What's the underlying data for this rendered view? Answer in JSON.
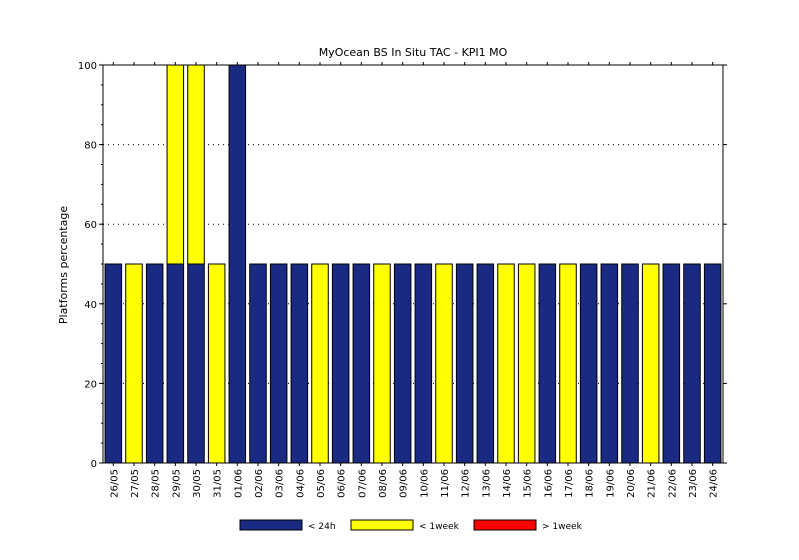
{
  "chart_data": {
    "type": "bar",
    "stacked": true,
    "title": "MyOcean  BS In Situ TAC - KPI1  MO",
    "xlabel": "",
    "ylabel": "Platforms percentage",
    "ylim": [
      0,
      100
    ],
    "yticks": [
      0,
      20,
      40,
      60,
      80,
      100
    ],
    "grid": true,
    "legend_position": "bottom",
    "categories": [
      "26/05",
      "27/05",
      "28/05",
      "29/05",
      "30/05",
      "31/05",
      "01/06",
      "02/06",
      "03/06",
      "04/06",
      "05/06",
      "06/06",
      "07/06",
      "08/06",
      "09/06",
      "10/06",
      "11/06",
      "12/06",
      "13/06",
      "14/06",
      "15/06",
      "16/06",
      "17/06",
      "18/06",
      "19/06",
      "20/06",
      "21/06",
      "22/06",
      "23/06",
      "24/06"
    ],
    "series": [
      {
        "name": "< 24h",
        "color": "#1a2a82",
        "values": [
          50,
          0,
          50,
          50,
          50,
          0,
          100,
          50,
          50,
          50,
          0,
          50,
          50,
          0,
          50,
          50,
          0,
          50,
          50,
          0,
          0,
          50,
          0,
          50,
          50,
          50,
          0,
          50,
          50,
          50
        ]
      },
      {
        "name": "< 1week",
        "color": "#ffff00",
        "values": [
          0,
          50,
          0,
          50,
          50,
          50,
          0,
          0,
          0,
          0,
          50,
          0,
          0,
          50,
          0,
          0,
          50,
          0,
          0,
          50,
          50,
          0,
          50,
          0,
          0,
          0,
          50,
          0,
          0,
          0
        ]
      },
      {
        "name": "> 1week",
        "color": "#ff0000",
        "values": [
          0,
          0,
          0,
          0,
          0,
          0,
          0,
          0,
          0,
          0,
          0,
          0,
          0,
          0,
          0,
          0,
          0,
          0,
          0,
          0,
          0,
          0,
          0,
          0,
          0,
          0,
          0,
          0,
          0,
          0
        ]
      }
    ]
  }
}
